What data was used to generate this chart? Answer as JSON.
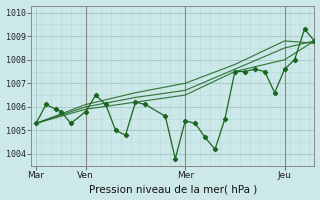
{
  "title": "Pression niveau de la mer( hPa )",
  "bg_color": "#cce8e8",
  "grid_major_color": "#a8c8c8",
  "grid_minor_color": "#b8d8d8",
  "line_color": "#1a6620",
  "ylim": [
    1003.5,
    1010.3
  ],
  "yticks": [
    1004,
    1005,
    1006,
    1007,
    1008,
    1009,
    1010
  ],
  "xlim": [
    -2,
    112
  ],
  "day_positions": [
    0,
    20,
    60,
    100
  ],
  "day_labels": [
    "Mar",
    "Ven",
    "Mer",
    "Jeu"
  ],
  "series_main": {
    "x": [
      0,
      4,
      8,
      10,
      14,
      20,
      24,
      28,
      32,
      36,
      40,
      44,
      52,
      56,
      60,
      64,
      68,
      72,
      76,
      80,
      84,
      88,
      92,
      96,
      100,
      104,
      108,
      112
    ],
    "y": [
      1005.3,
      1006.1,
      1005.9,
      1005.8,
      1005.3,
      1005.8,
      1006.5,
      1006.1,
      1005.0,
      1004.8,
      1006.2,
      1006.1,
      1005.6,
      1003.8,
      1005.4,
      1005.3,
      1004.7,
      1004.2,
      1005.5,
      1007.5,
      1007.5,
      1007.6,
      1007.5,
      1006.6,
      1007.6,
      1008.0,
      1009.3,
      1008.8
    ]
  },
  "series_smooth1": {
    "x": [
      0,
      20,
      40,
      60,
      80,
      100,
      112
    ],
    "y": [
      1005.3,
      1005.9,
      1006.2,
      1006.5,
      1007.5,
      1008.0,
      1008.8
    ]
  },
  "series_smooth2": {
    "x": [
      0,
      20,
      40,
      60,
      80,
      100,
      112
    ],
    "y": [
      1005.3,
      1006.0,
      1006.4,
      1006.7,
      1007.6,
      1008.5,
      1008.8
    ]
  },
  "series_smooth3": {
    "x": [
      0,
      20,
      40,
      60,
      80,
      100,
      112
    ],
    "y": [
      1005.3,
      1006.1,
      1006.6,
      1007.0,
      1007.8,
      1008.8,
      1008.7
    ]
  }
}
